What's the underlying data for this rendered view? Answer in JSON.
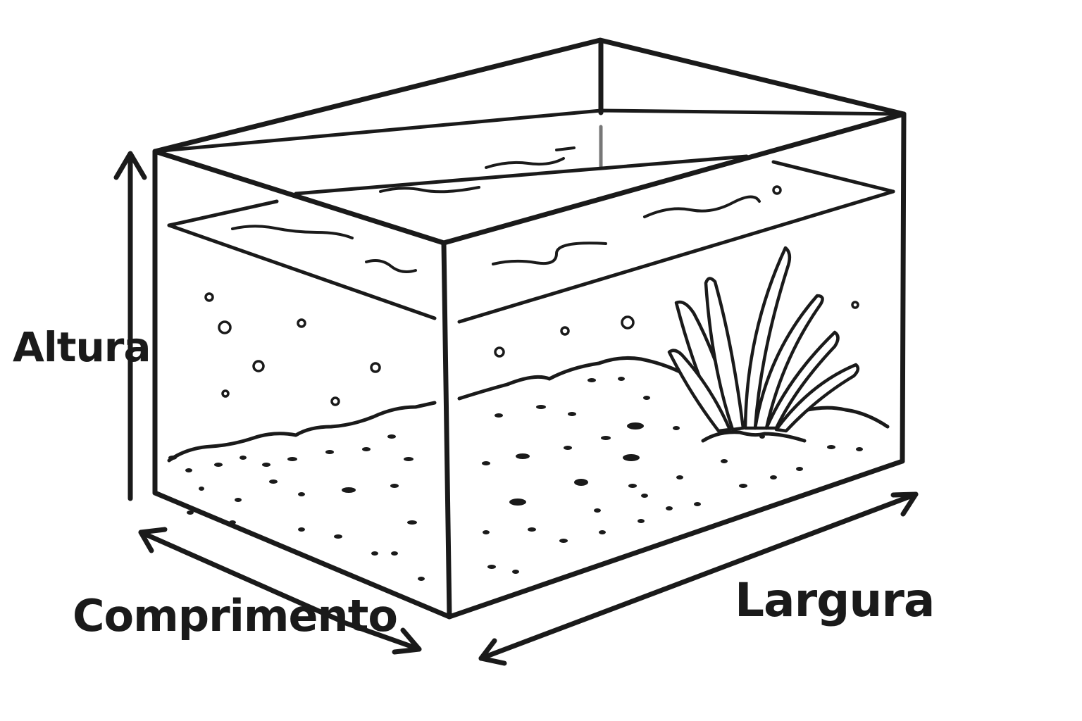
{
  "labels": {
    "height": "Altura",
    "length": "Comprimento",
    "width": "Largura"
  },
  "colors": {
    "ink": "#1a1a1a",
    "background": "#ffffff"
  }
}
